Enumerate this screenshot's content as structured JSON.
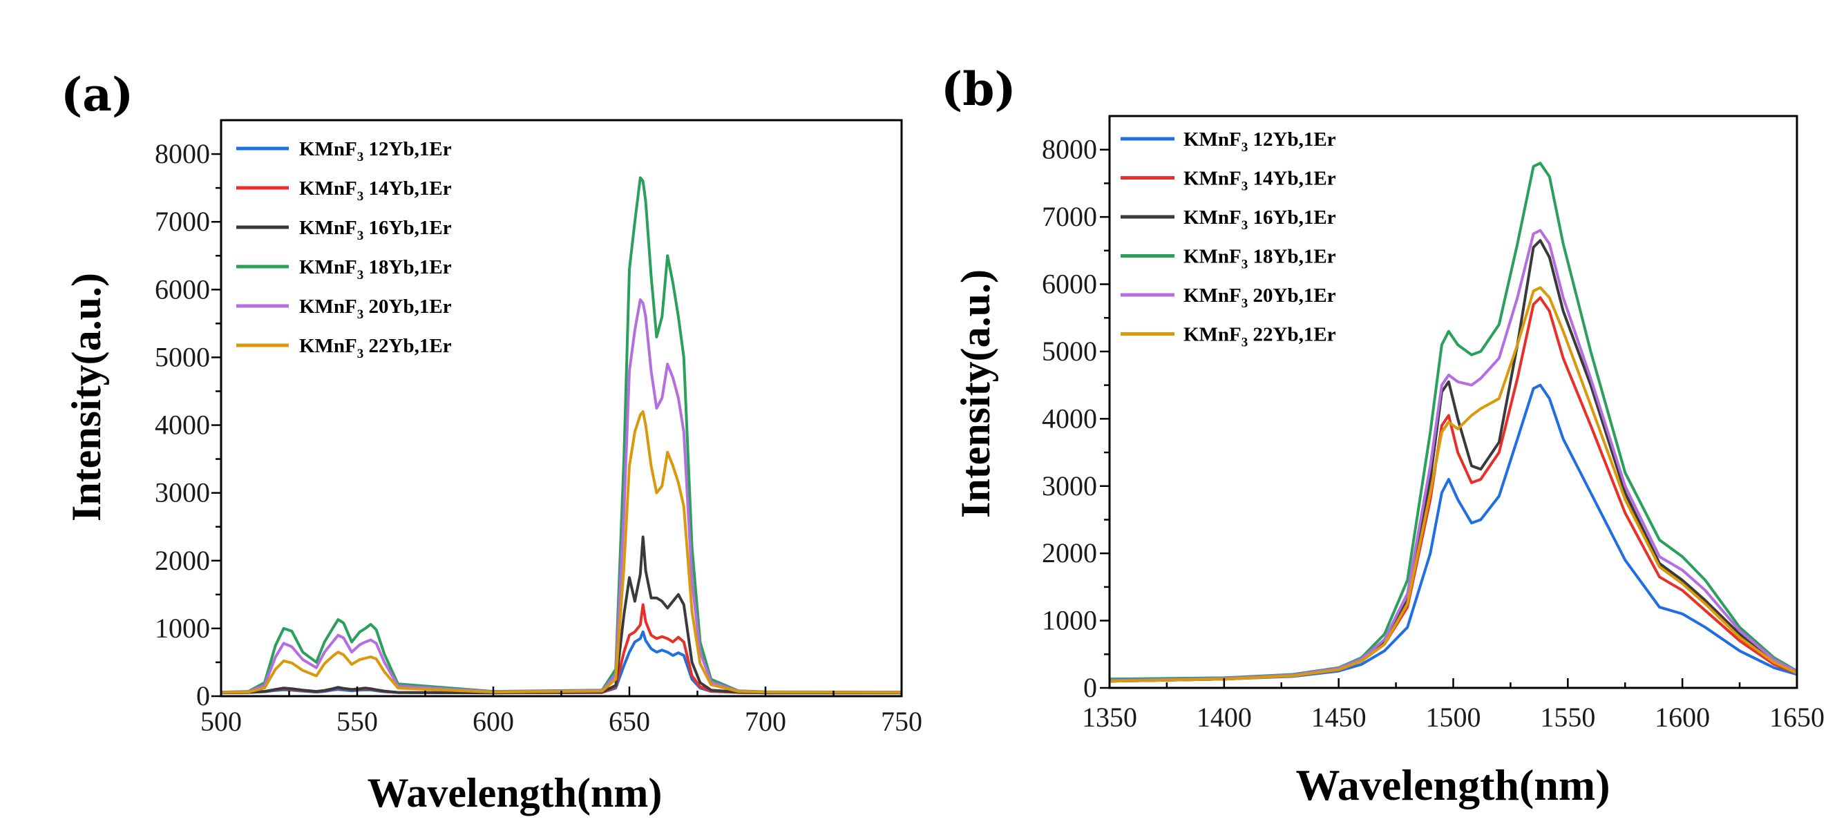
{
  "chart_data": [
    {
      "type": "line",
      "panel_label": "(a)",
      "title": "",
      "xlabel": "Wavelength(nm)",
      "ylabel": "Intensity(a.u.)",
      "xlim": [
        500,
        750
      ],
      "ylim": [
        0,
        8500
      ],
      "xticks": [
        500,
        550,
        600,
        650,
        700,
        750
      ],
      "yticks": [
        0,
        1000,
        2000,
        3000,
        4000,
        5000,
        6000,
        7000,
        8000
      ],
      "legend_position": "top-left",
      "series": [
        {
          "name": "KMnF3 12Yb,1Er",
          "legend": {
            "prefix": "KMnF",
            "sub": "3",
            "suffix": " 12Yb,1Er"
          },
          "color": "#1f6fe0",
          "x": [
            500,
            510,
            516,
            520,
            523,
            526,
            530,
            535,
            538,
            541,
            543,
            545,
            548,
            551,
            553,
            555,
            557,
            560,
            565,
            600,
            640,
            645,
            648,
            650,
            652,
            654,
            655,
            656,
            658,
            660,
            662,
            664,
            666,
            668,
            670,
            673,
            676,
            680,
            690,
            700,
            750
          ],
          "y": [
            50,
            55,
            65,
            85,
            95,
            88,
            75,
            60,
            70,
            90,
            100,
            92,
            80,
            90,
            95,
            92,
            80,
            65,
            55,
            50,
            55,
            120,
            450,
            650,
            800,
            850,
            950,
            820,
            700,
            650,
            680,
            650,
            600,
            640,
            600,
            250,
            120,
            70,
            55,
            50,
            50
          ]
        },
        {
          "name": "KMnF3 14Yb,1Er",
          "legend": {
            "prefix": "KMnF",
            "sub": "3",
            "suffix": " 14Yb,1Er"
          },
          "color": "#e8302a",
          "x": [
            500,
            510,
            516,
            520,
            523,
            526,
            530,
            535,
            538,
            541,
            543,
            545,
            548,
            551,
            553,
            555,
            557,
            560,
            565,
            600,
            640,
            645,
            648,
            650,
            652,
            654,
            655,
            656,
            658,
            660,
            662,
            664,
            666,
            668,
            670,
            673,
            676,
            680,
            690,
            700,
            750
          ],
          "y": [
            50,
            55,
            70,
            95,
            110,
            100,
            85,
            65,
            80,
            105,
            120,
            110,
            95,
            105,
            110,
            105,
            90,
            70,
            55,
            50,
            55,
            140,
            650,
            900,
            950,
            1050,
            1350,
            1100,
            900,
            850,
            880,
            850,
            800,
            870,
            800,
            300,
            140,
            75,
            55,
            50,
            50
          ]
        },
        {
          "name": "KMnF3 16Yb,1Er",
          "legend": {
            "prefix": "KMnF",
            "sub": "3",
            "suffix": " 16Yb,1Er"
          },
          "color": "#3a3a3a",
          "x": [
            500,
            510,
            516,
            520,
            523,
            526,
            530,
            535,
            538,
            541,
            543,
            545,
            548,
            551,
            553,
            555,
            557,
            560,
            565,
            600,
            640,
            645,
            648,
            650,
            652,
            654,
            655,
            656,
            658,
            660,
            662,
            664,
            666,
            668,
            670,
            673,
            676,
            680,
            690,
            700,
            750
          ],
          "y": [
            50,
            55,
            70,
            100,
            120,
            110,
            90,
            70,
            85,
            110,
            130,
            115,
            100,
            110,
            120,
            110,
            95,
            75,
            55,
            50,
            60,
            160,
            1200,
            1750,
            1400,
            1800,
            2350,
            1850,
            1450,
            1450,
            1400,
            1300,
            1400,
            1500,
            1350,
            500,
            200,
            90,
            60,
            50,
            50
          ]
        },
        {
          "name": "KMnF3 18Yb,1Er",
          "legend": {
            "prefix": "KMnF",
            "sub": "3",
            "suffix": " 18Yb,1Er"
          },
          "color": "#2aa05c",
          "x": [
            500,
            510,
            516,
            520,
            523,
            526,
            530,
            535,
            538,
            541,
            543,
            545,
            548,
            551,
            553,
            555,
            557,
            560,
            565,
            600,
            640,
            645,
            648,
            650,
            652,
            654,
            655,
            656,
            658,
            660,
            662,
            664,
            666,
            668,
            670,
            673,
            676,
            680,
            690,
            700,
            750
          ],
          "y": [
            60,
            70,
            200,
            750,
            1000,
            960,
            650,
            500,
            800,
            1000,
            1130,
            1080,
            800,
            950,
            1000,
            1060,
            980,
            620,
            180,
            70,
            90,
            400,
            3500,
            6300,
            7000,
            7650,
            7600,
            7300,
            6200,
            5300,
            5600,
            6500,
            6100,
            5600,
            5000,
            2200,
            800,
            250,
            80,
            65,
            60
          ]
        },
        {
          "name": "KMnF3 20Yb,1Er",
          "legend": {
            "prefix": "KMnF",
            "sub": "3",
            "suffix": " 20Yb,1Er"
          },
          "color": "#b36ee0",
          "x": [
            500,
            510,
            516,
            520,
            523,
            526,
            530,
            535,
            538,
            541,
            543,
            545,
            548,
            551,
            553,
            555,
            557,
            560,
            565,
            600,
            640,
            645,
            648,
            650,
            652,
            654,
            655,
            656,
            658,
            660,
            662,
            664,
            666,
            668,
            670,
            673,
            676,
            680,
            690,
            700,
            750
          ],
          "y": [
            60,
            65,
            160,
            580,
            780,
            730,
            540,
            420,
            650,
            800,
            900,
            860,
            650,
            760,
            800,
            830,
            780,
            500,
            150,
            65,
            85,
            320,
            2700,
            4800,
            5400,
            5850,
            5800,
            5600,
            4800,
            4250,
            4400,
            4900,
            4700,
            4400,
            3900,
            1700,
            650,
            210,
            75,
            60,
            60
          ]
        },
        {
          "name": "KMnF3 22Yb,1Er",
          "legend": {
            "prefix": "KMnF",
            "sub": "3",
            "suffix": " 22Yb,1Er"
          },
          "color": "#d89a0c",
          "x": [
            500,
            510,
            516,
            520,
            523,
            526,
            530,
            535,
            538,
            541,
            543,
            545,
            548,
            551,
            553,
            555,
            557,
            560,
            565,
            600,
            640,
            645,
            648,
            650,
            652,
            654,
            655,
            656,
            658,
            660,
            662,
            664,
            666,
            668,
            670,
            673,
            676,
            680,
            690,
            700,
            750
          ],
          "y": [
            55,
            60,
            120,
            400,
            520,
            490,
            380,
            300,
            480,
            590,
            650,
            610,
            470,
            540,
            560,
            580,
            550,
            360,
            120,
            60,
            75,
            250,
            1900,
            3400,
            3900,
            4150,
            4200,
            4000,
            3400,
            3000,
            3100,
            3600,
            3400,
            3150,
            2800,
            1250,
            480,
            170,
            70,
            60,
            55
          ]
        }
      ]
    },
    {
      "type": "line",
      "panel_label": "(b)",
      "title": "",
      "xlabel": "Wavelength(nm)",
      "ylabel": "Intensity(a.u.)",
      "xlim": [
        1350,
        1650
      ],
      "ylim": [
        0,
        8500
      ],
      "xticks": [
        1350,
        1400,
        1450,
        1500,
        1550,
        1600,
        1650
      ],
      "yticks": [
        0,
        1000,
        2000,
        3000,
        4000,
        5000,
        6000,
        7000,
        8000
      ],
      "legend_position": "top-left",
      "series": [
        {
          "name": "KMnF3 12Yb,1Er",
          "legend": {
            "prefix": "KMnF",
            "sub": "3",
            "suffix": " 12Yb,1Er"
          },
          "color": "#1f6fe0",
          "x": [
            1350,
            1400,
            1430,
            1450,
            1460,
            1470,
            1480,
            1490,
            1495,
            1498,
            1502,
            1508,
            1512,
            1520,
            1528,
            1535,
            1538,
            1542,
            1548,
            1560,
            1575,
            1590,
            1600,
            1610,
            1625,
            1640,
            1650
          ],
          "y": [
            100,
            130,
            170,
            250,
            350,
            550,
            900,
            2000,
            2900,
            3100,
            2800,
            2450,
            2500,
            2850,
            3700,
            4450,
            4500,
            4300,
            3700,
            2900,
            1900,
            1200,
            1100,
            900,
            550,
            300,
            200
          ]
        },
        {
          "name": "KMnF3 14Yb,1Er",
          "legend": {
            "prefix": "KMnF",
            "sub": "3",
            "suffix": " 14Yb,1Er"
          },
          "color": "#e8302a",
          "x": [
            1350,
            1400,
            1430,
            1450,
            1460,
            1470,
            1480,
            1490,
            1495,
            1498,
            1502,
            1508,
            1512,
            1520,
            1528,
            1535,
            1538,
            1542,
            1548,
            1560,
            1575,
            1590,
            1600,
            1610,
            1625,
            1640,
            1650
          ],
          "y": [
            100,
            130,
            180,
            270,
            400,
            650,
            1200,
            2800,
            3900,
            4050,
            3500,
            3050,
            3100,
            3500,
            4600,
            5700,
            5800,
            5600,
            4900,
            3900,
            2600,
            1650,
            1450,
            1150,
            700,
            350,
            220
          ]
        },
        {
          "name": "KMnF3 16Yb,1Er",
          "legend": {
            "prefix": "KMnF",
            "sub": "3",
            "suffix": " 16Yb,1Er"
          },
          "color": "#3a3a3a",
          "x": [
            1350,
            1400,
            1430,
            1450,
            1460,
            1470,
            1480,
            1490,
            1495,
            1498,
            1502,
            1508,
            1512,
            1520,
            1528,
            1535,
            1538,
            1542,
            1548,
            1560,
            1575,
            1590,
            1600,
            1610,
            1625,
            1640,
            1650
          ],
          "y": [
            100,
            130,
            185,
            280,
            420,
            700,
            1300,
            3100,
            4400,
            4550,
            4000,
            3300,
            3250,
            3650,
            5100,
            6550,
            6650,
            6400,
            5600,
            4500,
            2900,
            1850,
            1600,
            1300,
            800,
            400,
            230
          ]
        },
        {
          "name": "KMnF3 18Yb,1Er",
          "legend": {
            "prefix": "KMnF",
            "sub": "3",
            "suffix": " 18Yb,1Er"
          },
          "color": "#2aa05c",
          "x": [
            1350,
            1400,
            1430,
            1450,
            1460,
            1470,
            1480,
            1490,
            1495,
            1498,
            1502,
            1508,
            1512,
            1520,
            1528,
            1535,
            1538,
            1542,
            1548,
            1560,
            1575,
            1590,
            1600,
            1610,
            1625,
            1640,
            1650
          ],
          "y": [
            130,
            150,
            200,
            300,
            450,
            800,
            1600,
            3800,
            5100,
            5300,
            5100,
            4950,
            5000,
            5400,
            6600,
            7750,
            7800,
            7600,
            6600,
            5000,
            3200,
            2200,
            1950,
            1600,
            900,
            450,
            250
          ]
        },
        {
          "name": "KMnF3 20Yb,1Er",
          "legend": {
            "prefix": "KMnF",
            "sub": "3",
            "suffix": " 20Yb,1Er"
          },
          "color": "#b36ee0",
          "x": [
            1350,
            1400,
            1430,
            1450,
            1460,
            1470,
            1480,
            1490,
            1495,
            1498,
            1502,
            1508,
            1512,
            1520,
            1528,
            1535,
            1538,
            1542,
            1548,
            1560,
            1575,
            1590,
            1600,
            1610,
            1625,
            1640,
            1650
          ],
          "y": [
            110,
            140,
            190,
            290,
            430,
            720,
            1400,
            3300,
            4500,
            4650,
            4550,
            4500,
            4600,
            4900,
            5800,
            6750,
            6800,
            6600,
            5800,
            4600,
            3000,
            1950,
            1750,
            1450,
            850,
            420,
            240
          ]
        },
        {
          "name": "KMnF3 22Yb,1Er",
          "legend": {
            "prefix": "KMnF",
            "sub": "3",
            "suffix": " 22Yb,1Er"
          },
          "color": "#d89a0c",
          "x": [
            1350,
            1400,
            1430,
            1450,
            1460,
            1470,
            1480,
            1490,
            1495,
            1498,
            1502,
            1508,
            1512,
            1520,
            1528,
            1535,
            1538,
            1542,
            1548,
            1560,
            1575,
            1590,
            1600,
            1610,
            1625,
            1640,
            1650
          ],
          "y": [
            100,
            130,
            180,
            270,
            400,
            650,
            1250,
            2900,
            3800,
            3950,
            3850,
            4050,
            4150,
            4300,
            5100,
            5900,
            5950,
            5800,
            5300,
            4200,
            2800,
            1800,
            1550,
            1250,
            750,
            380,
            220
          ]
        }
      ]
    }
  ]
}
